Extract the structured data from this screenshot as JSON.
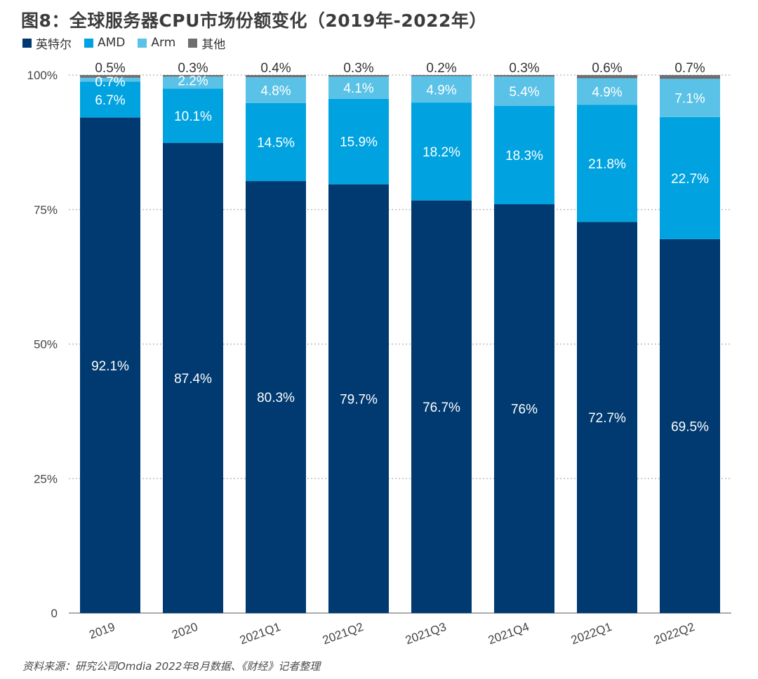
{
  "title": "图8：全球服务器CPU市场份额变化（2019年-2022年）",
  "footer": "资料来源：研究公司Omdia 2022年8月数据、《财经》记者整理",
  "colors": {
    "intel": "#003a70",
    "amd": "#00a3e0",
    "arm": "#5bc2e7",
    "other": "#6d6e71",
    "grid": "#b0b0b0",
    "axis_text": "#444444",
    "label_light": "#ffffff",
    "label_dark": "#333333"
  },
  "chart_data": {
    "type": "bar",
    "stacked": true,
    "categories": [
      "2019",
      "2020",
      "2021Q1",
      "2021Q2",
      "2021Q3",
      "2021Q4",
      "2022Q1",
      "2022Q2"
    ],
    "series": [
      {
        "name": "英特尔",
        "color_key": "intel",
        "values": [
          92.1,
          87.4,
          80.3,
          79.7,
          76.7,
          76,
          72.7,
          69.5
        ],
        "labels": [
          "92.1%",
          "87.4%",
          "80.3%",
          "79.7%",
          "76.7%",
          "76%",
          "72.7%",
          "69.5%"
        ]
      },
      {
        "name": "AMD",
        "color_key": "amd",
        "values": [
          6.7,
          10.1,
          14.5,
          15.9,
          18.2,
          18.3,
          21.8,
          22.7
        ],
        "labels": [
          "6.7%",
          "10.1%",
          "14.5%",
          "15.9%",
          "18.2%",
          "18.3%",
          "21.8%",
          "22.7%"
        ]
      },
      {
        "name": "Arm",
        "color_key": "arm",
        "values": [
          0.7,
          2.2,
          4.8,
          4.1,
          4.9,
          5.4,
          4.9,
          7.1
        ],
        "labels": [
          "0.7%",
          "2.2%",
          "4.8%",
          "4.1%",
          "4.9%",
          "5.4%",
          "4.9%",
          "7.1%"
        ]
      },
      {
        "name": "其他",
        "color_key": "other",
        "values": [
          0.5,
          0.3,
          0.4,
          0.3,
          0.2,
          0.3,
          0.6,
          0.7
        ],
        "labels": [
          "0.5%",
          "0.3%",
          "0.4%",
          "0.3%",
          "0.2%",
          "0.3%",
          "0.6%",
          "0.7%"
        ]
      }
    ],
    "y_ticks": [
      0,
      25,
      50,
      75,
      100
    ],
    "y_tick_labels": [
      "0",
      "25%",
      "50%",
      "75%",
      "100%"
    ],
    "ylim": [
      0,
      100
    ],
    "grid": true,
    "legend_position": "top-left"
  }
}
